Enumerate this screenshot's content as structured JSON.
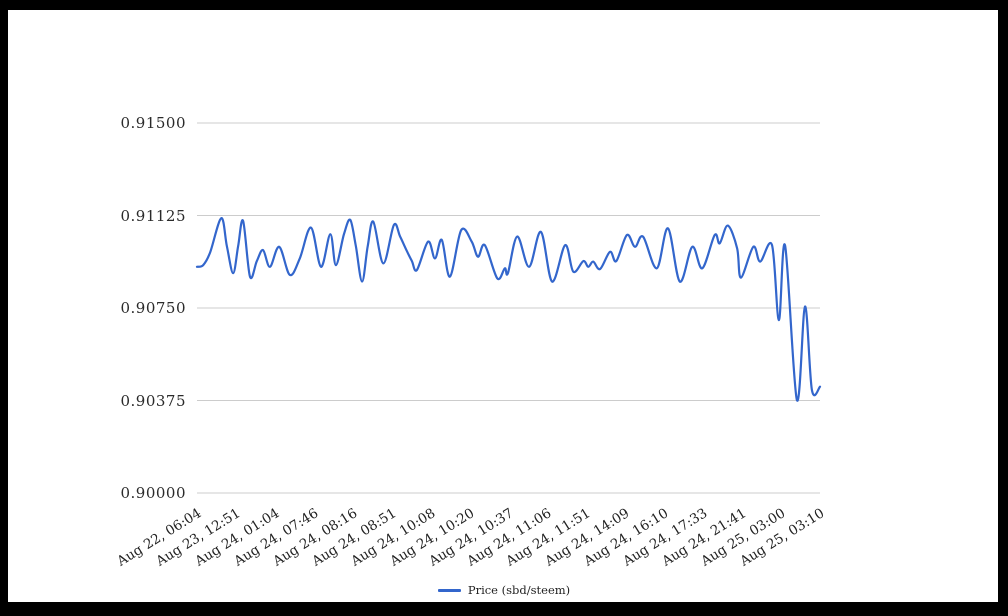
{
  "chart_data": {
    "type": "line",
    "title": "",
    "xlabel": "",
    "ylabel": "",
    "grid": true,
    "legend_position": "bottom",
    "ylim": [
      0.9,
      0.915
    ],
    "y_tick_labels": [
      "0.91500",
      "0.91125",
      "0.90750",
      "0.90375",
      "0.90000"
    ],
    "y_tick_values": [
      0.915,
      0.91125,
      0.9075,
      0.90375,
      0.9
    ],
    "x_tick_labels": [
      "Aug 22, 06:04",
      "Aug 23, 12:51",
      "Aug 24, 01:04",
      "Aug 24, 07:46",
      "Aug 24, 08:16",
      "Aug 24, 08:51",
      "Aug 24, 10:08",
      "Aug 24, 10:20",
      "Aug 24, 10:37",
      "Aug 24, 11:06",
      "Aug 24, 11:51",
      "Aug 24, 14:09",
      "Aug 24, 16:10",
      "Aug 24, 17:33",
      "Aug 24, 21:41",
      "Aug 25, 03:00",
      "Aug 25, 03:10"
    ],
    "series": [
      {
        "name": "Price (sbd/steem)",
        "color": "#3366cc",
        "points": [
          [
            0.0,
            0.90917
          ],
          [
            0.01,
            0.90924
          ],
          [
            0.021,
            0.90975
          ],
          [
            0.039,
            0.91114
          ],
          [
            0.048,
            0.91
          ],
          [
            0.058,
            0.90891
          ],
          [
            0.066,
            0.91
          ],
          [
            0.074,
            0.91103
          ],
          [
            0.085,
            0.90877
          ],
          [
            0.096,
            0.9094
          ],
          [
            0.106,
            0.90985
          ],
          [
            0.117,
            0.90917
          ],
          [
            0.132,
            0.90998
          ],
          [
            0.149,
            0.90884
          ],
          [
            0.165,
            0.90951
          ],
          [
            0.183,
            0.91076
          ],
          [
            0.199,
            0.90917
          ],
          [
            0.214,
            0.91049
          ],
          [
            0.223,
            0.90924
          ],
          [
            0.236,
            0.9105
          ],
          [
            0.246,
            0.91107
          ],
          [
            0.255,
            0.91
          ],
          [
            0.265,
            0.90857
          ],
          [
            0.274,
            0.91
          ],
          [
            0.283,
            0.911
          ],
          [
            0.299,
            0.90931
          ],
          [
            0.316,
            0.91087
          ],
          [
            0.326,
            0.9104
          ],
          [
            0.337,
            0.9098
          ],
          [
            0.345,
            0.9094
          ],
          [
            0.353,
            0.90904
          ],
          [
            0.371,
            0.91019
          ],
          [
            0.382,
            0.90951
          ],
          [
            0.393,
            0.91026
          ],
          [
            0.406,
            0.90877
          ],
          [
            0.424,
            0.91066
          ],
          [
            0.441,
            0.91019
          ],
          [
            0.451,
            0.90958
          ],
          [
            0.462,
            0.91005
          ],
          [
            0.482,
            0.9087
          ],
          [
            0.494,
            0.90911
          ],
          [
            0.499,
            0.90891
          ],
          [
            0.514,
            0.9104
          ],
          [
            0.533,
            0.90917
          ],
          [
            0.552,
            0.91059
          ],
          [
            0.57,
            0.90857
          ],
          [
            0.591,
            0.91005
          ],
          [
            0.604,
            0.90897
          ],
          [
            0.62,
            0.9094
          ],
          [
            0.628,
            0.90917
          ],
          [
            0.636,
            0.90938
          ],
          [
            0.647,
            0.90908
          ],
          [
            0.663,
            0.90978
          ],
          [
            0.673,
            0.9094
          ],
          [
            0.69,
            0.91046
          ],
          [
            0.703,
            0.90998
          ],
          [
            0.716,
            0.91039
          ],
          [
            0.738,
            0.90911
          ],
          [
            0.756,
            0.91073
          ],
          [
            0.775,
            0.90857
          ],
          [
            0.795,
            0.90998
          ],
          [
            0.811,
            0.90911
          ],
          [
            0.831,
            0.91046
          ],
          [
            0.839,
            0.91012
          ],
          [
            0.852,
            0.91084
          ],
          [
            0.867,
            0.90992
          ],
          [
            0.873,
            0.90873
          ],
          [
            0.893,
            0.90998
          ],
          [
            0.904,
            0.90938
          ],
          [
            0.923,
            0.91005
          ],
          [
            0.934,
            0.90701
          ],
          [
            0.944,
            0.91003
          ],
          [
            0.963,
            0.90377
          ],
          [
            0.976,
            0.90756
          ],
          [
            0.987,
            0.90418
          ],
          [
            1.0,
            0.90431
          ]
        ]
      }
    ],
    "colors": {
      "line": "#3366cc",
      "gridline": "#cccccc",
      "axis_text": "#222222",
      "background": "#ffffff",
      "frame": "#000000"
    }
  },
  "legend": {
    "label": "Price (sbd/steem)"
  }
}
